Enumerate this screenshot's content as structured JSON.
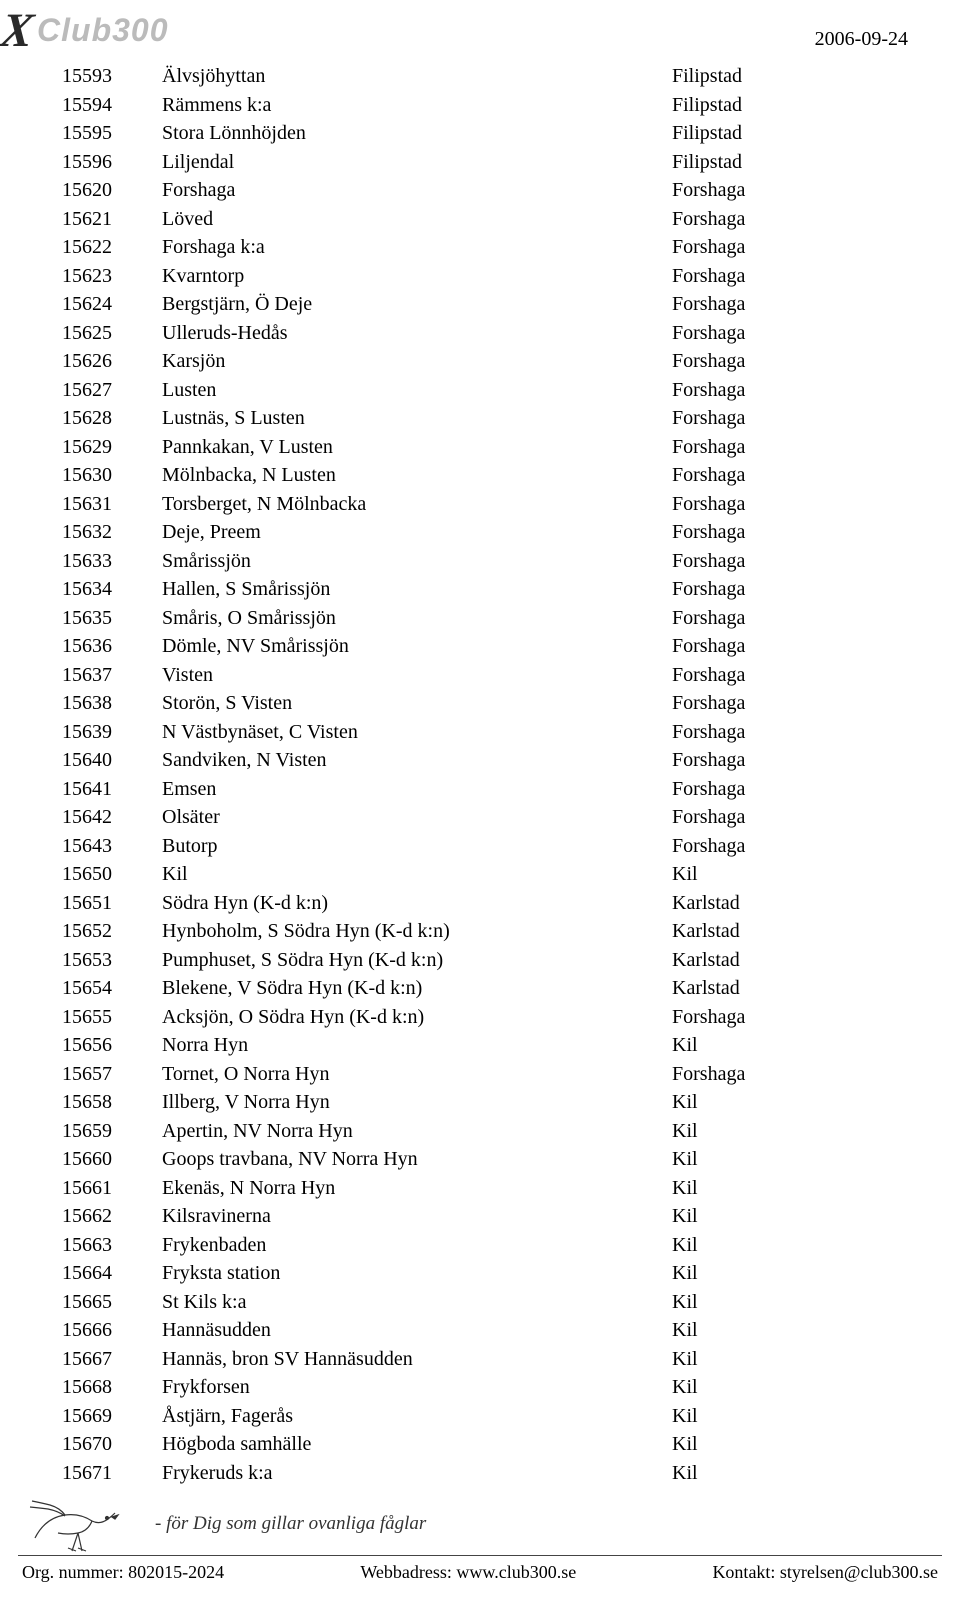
{
  "header": {
    "date": "2006-09-24",
    "logo_text": "Club300"
  },
  "rows": [
    {
      "code": "15593",
      "name": "Älvsjöhyttan",
      "region": "Filipstad"
    },
    {
      "code": "15594",
      "name": "Rämmens k:a",
      "region": "Filipstad"
    },
    {
      "code": "15595",
      "name": "Stora Lönnhöjden",
      "region": "Filipstad"
    },
    {
      "code": "15596",
      "name": "Liljendal",
      "region": "Filipstad"
    },
    {
      "code": "15620",
      "name": "Forshaga",
      "region": "Forshaga"
    },
    {
      "code": "15621",
      "name": "Löved",
      "region": "Forshaga"
    },
    {
      "code": "15622",
      "name": "Forshaga k:a",
      "region": "Forshaga"
    },
    {
      "code": "15623",
      "name": "Kvarntorp",
      "region": "Forshaga"
    },
    {
      "code": "15624",
      "name": "Bergstjärn, Ö Deje",
      "region": "Forshaga"
    },
    {
      "code": "15625",
      "name": "Ulleruds-Hedås",
      "region": "Forshaga"
    },
    {
      "code": "15626",
      "name": "Karsjön",
      "region": "Forshaga"
    },
    {
      "code": "15627",
      "name": "Lusten",
      "region": "Forshaga"
    },
    {
      "code": "15628",
      "name": "Lustnäs, S Lusten",
      "region": "Forshaga"
    },
    {
      "code": "15629",
      "name": "Pannkakan, V Lusten",
      "region": "Forshaga"
    },
    {
      "code": "15630",
      "name": "Mölnbacka, N Lusten",
      "region": "Forshaga"
    },
    {
      "code": "15631",
      "name": "Torsberget, N Mölnbacka",
      "region": "Forshaga"
    },
    {
      "code": "15632",
      "name": "Deje, Preem",
      "region": "Forshaga"
    },
    {
      "code": "15633",
      "name": "Smårissjön",
      "region": "Forshaga"
    },
    {
      "code": "15634",
      "name": "Hallen, S Smårissjön",
      "region": "Forshaga"
    },
    {
      "code": "15635",
      "name": "Småris, O Smårissjön",
      "region": "Forshaga"
    },
    {
      "code": "15636",
      "name": "Dömle, NV Smårissjön",
      "region": "Forshaga"
    },
    {
      "code": "15637",
      "name": "Visten",
      "region": "Forshaga"
    },
    {
      "code": "15638",
      "name": "Storön, S Visten",
      "region": "Forshaga"
    },
    {
      "code": "15639",
      "name": "N Västbynäset, C Visten",
      "region": "Forshaga"
    },
    {
      "code": "15640",
      "name": "Sandviken, N Visten",
      "region": "Forshaga"
    },
    {
      "code": "15641",
      "name": "Emsen",
      "region": "Forshaga"
    },
    {
      "code": "15642",
      "name": "Olsäter",
      "region": "Forshaga"
    },
    {
      "code": "15643",
      "name": "Butorp",
      "region": "Forshaga"
    },
    {
      "code": "15650",
      "name": "Kil",
      "region": "Kil"
    },
    {
      "code": "15651",
      "name": "Södra Hyn (K-d k:n)",
      "region": "Karlstad"
    },
    {
      "code": "15652",
      "name": "Hynboholm, S Södra Hyn (K-d k:n)",
      "region": "Karlstad"
    },
    {
      "code": "15653",
      "name": "Pumphuset, S Södra Hyn (K-d k:n)",
      "region": "Karlstad"
    },
    {
      "code": "15654",
      "name": "Blekene, V Södra Hyn (K-d k:n)",
      "region": "Karlstad"
    },
    {
      "code": "15655",
      "name": "Acksjön, O Södra Hyn (K-d k:n)",
      "region": "Forshaga"
    },
    {
      "code": "15656",
      "name": "Norra Hyn",
      "region": "Kil"
    },
    {
      "code": "15657",
      "name": "Tornet, O Norra Hyn",
      "region": "Forshaga"
    },
    {
      "code": "15658",
      "name": "Illberg, V Norra Hyn",
      "region": "Kil"
    },
    {
      "code": "15659",
      "name": "Apertin, NV Norra Hyn",
      "region": "Kil"
    },
    {
      "code": "15660",
      "name": "Goops travbana, NV Norra Hyn",
      "region": "Kil"
    },
    {
      "code": "15661",
      "name": "Ekenäs, N Norra Hyn",
      "region": "Kil"
    },
    {
      "code": "15662",
      "name": "Kilsravinerna",
      "region": "Kil"
    },
    {
      "code": "15663",
      "name": "Frykenbaden",
      "region": "Kil"
    },
    {
      "code": "15664",
      "name": "Fryksta station",
      "region": "Kil"
    },
    {
      "code": "15665",
      "name": "St Kils k:a",
      "region": "Kil"
    },
    {
      "code": "15666",
      "name": "Hannäsudden",
      "region": "Kil"
    },
    {
      "code": "15667",
      "name": "Hannäs, bron SV Hannäsudden",
      "region": "Kil"
    },
    {
      "code": "15668",
      "name": "Frykforsen",
      "region": "Kil"
    },
    {
      "code": "15669",
      "name": "Åstjärn, Fagerås",
      "region": "Kil"
    },
    {
      "code": "15670",
      "name": "Högboda samhälle",
      "region": "Kil"
    },
    {
      "code": "15671",
      "name": "Frykeruds k:a",
      "region": "Kil"
    }
  ],
  "footer": {
    "tagline": "- för Dig som gillar ovanliga fåglar",
    "org": "Org. nummer: 802015-2024",
    "web": "Webbadress: www.club300.se",
    "contact": "Kontakt: styrelsen@club300.se"
  }
}
